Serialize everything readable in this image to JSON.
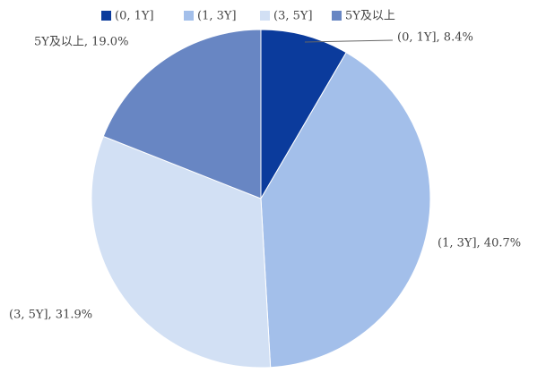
{
  "chart_data": {
    "type": "pie",
    "categories": [
      "(0, 1Y]",
      "(1, 3Y]",
      "(3, 5Y]",
      "5Y及以上"
    ],
    "values": [
      8.4,
      40.7,
      31.9,
      19.0
    ],
    "value_labels": [
      "(0, 1Y], 8.4%",
      "(1, 3Y], 40.7%",
      "(3, 5Y], 31.9%",
      "5Y及以上, 19.0%"
    ],
    "colors": [
      "#0b3b9c",
      "#a3bfea",
      "#d2e0f4",
      "#6886c3"
    ],
    "legend": "top"
  }
}
